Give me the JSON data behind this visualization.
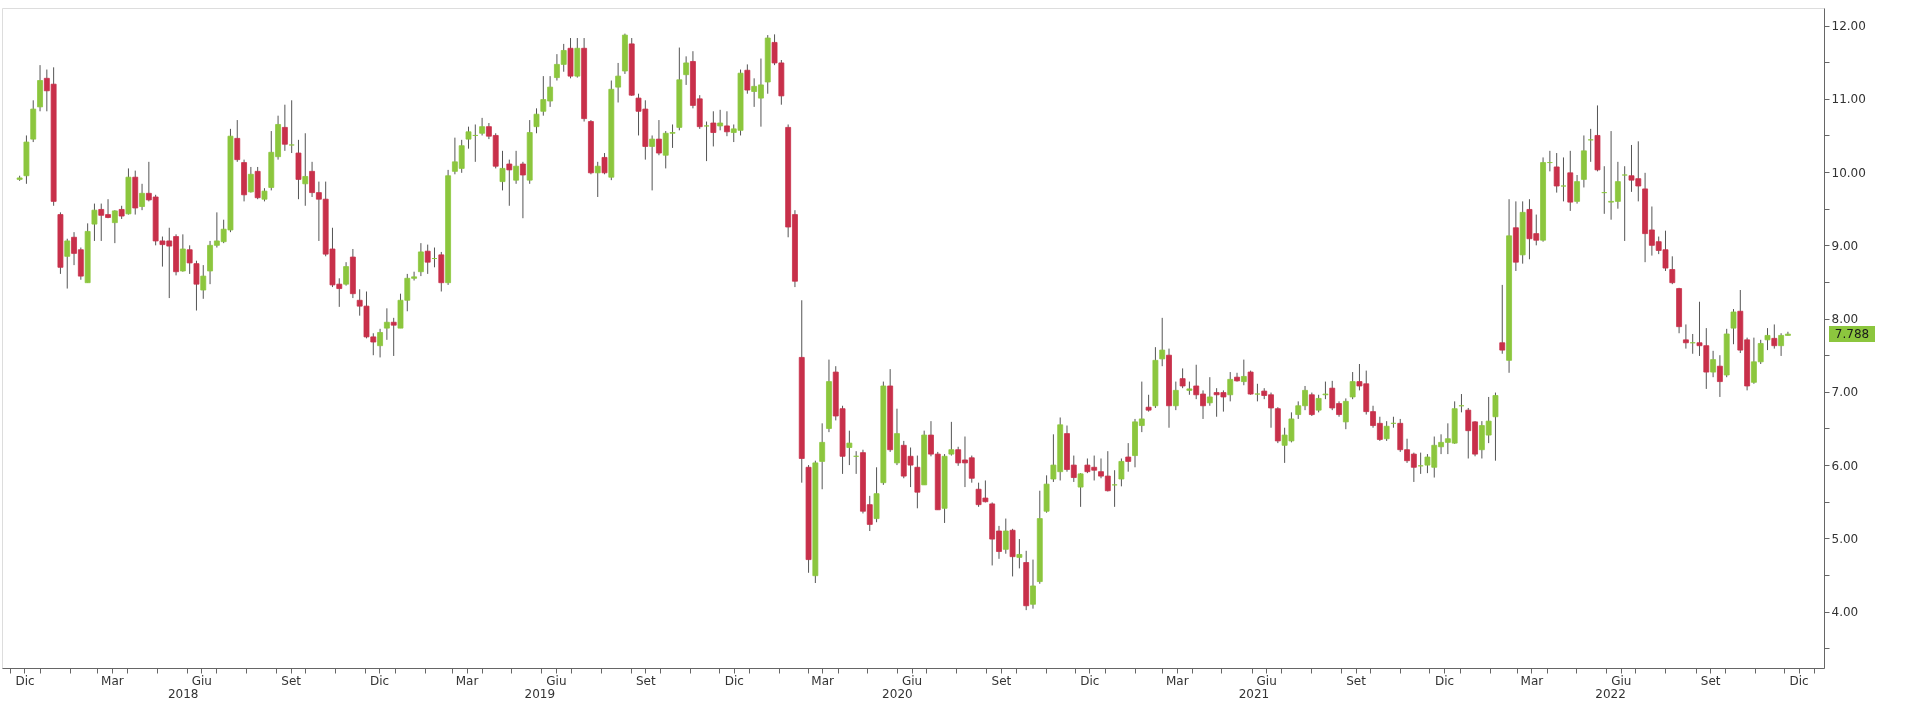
{
  "chart_data": {
    "type": "candlestick",
    "x": [
      "2017-12-11",
      "2017-12-18",
      "2017-12-25",
      "2018-01-01",
      "2018-01-08",
      "2018-01-15",
      "2018-01-22",
      "2018-01-29",
      "2018-02-05",
      "2018-02-12",
      "2018-02-19",
      "2018-02-26",
      "2018-03-05",
      "2018-03-12",
      "2018-03-19",
      "2018-03-26",
      "2018-04-02",
      "2018-04-09",
      "2018-04-16",
      "2018-04-23",
      "2018-04-30",
      "2018-05-07",
      "2018-05-14",
      "2018-05-21",
      "2018-05-28",
      "2018-06-04",
      "2018-06-11",
      "2018-06-18",
      "2018-06-25",
      "2018-07-02",
      "2018-07-09",
      "2018-07-16",
      "2018-07-23",
      "2018-07-30",
      "2018-08-06",
      "2018-08-13",
      "2018-08-20",
      "2018-08-27",
      "2018-09-03",
      "2018-09-10",
      "2018-09-17",
      "2018-09-24",
      "2018-10-01",
      "2018-10-08",
      "2018-10-15",
      "2018-10-22",
      "2018-10-29",
      "2018-11-05",
      "2018-11-12",
      "2018-11-19",
      "2018-11-26",
      "2018-12-03",
      "2018-12-10",
      "2018-12-17",
      "2018-12-24",
      "2018-12-31",
      "2019-01-07",
      "2019-01-14",
      "2019-01-21",
      "2019-01-28",
      "2019-02-04",
      "2019-02-11",
      "2019-02-18",
      "2019-02-25",
      "2019-03-04",
      "2019-03-11",
      "2019-03-18",
      "2019-03-25",
      "2019-04-01",
      "2019-04-08",
      "2019-04-15",
      "2019-04-22",
      "2019-04-29",
      "2019-05-06",
      "2019-05-13",
      "2019-05-20",
      "2019-05-27",
      "2019-06-03",
      "2019-06-10",
      "2019-06-17",
      "2019-06-24",
      "2019-07-01",
      "2019-07-08",
      "2019-07-15",
      "2019-07-22",
      "2019-07-29",
      "2019-08-05",
      "2019-08-12",
      "2019-08-19",
      "2019-08-26",
      "2019-09-02",
      "2019-09-09",
      "2019-09-16",
      "2019-09-23",
      "2019-09-30",
      "2019-10-07",
      "2019-10-14",
      "2019-10-21",
      "2019-10-28",
      "2019-11-04",
      "2019-11-11",
      "2019-11-18",
      "2019-11-25",
      "2019-12-02",
      "2019-12-09",
      "2019-12-16",
      "2019-12-23",
      "2019-12-30",
      "2020-01-06",
      "2020-01-13",
      "2020-01-20",
      "2020-01-27",
      "2020-02-03",
      "2020-02-10",
      "2020-02-17",
      "2020-02-24",
      "2020-03-02",
      "2020-03-09",
      "2020-03-16",
      "2020-03-23",
      "2020-03-30",
      "2020-04-06",
      "2020-04-13",
      "2020-04-20",
      "2020-04-27",
      "2020-05-04",
      "2020-05-11",
      "2020-05-18",
      "2020-05-25",
      "2020-06-01",
      "2020-06-08",
      "2020-06-15",
      "2020-06-22",
      "2020-06-29",
      "2020-07-06",
      "2020-07-13",
      "2020-07-20",
      "2020-07-27",
      "2020-08-03",
      "2020-08-10",
      "2020-08-17",
      "2020-08-24",
      "2020-08-31",
      "2020-09-07",
      "2020-09-14",
      "2020-09-21",
      "2020-09-28",
      "2020-10-05",
      "2020-10-12",
      "2020-10-19",
      "2020-10-26",
      "2020-11-02",
      "2020-11-09",
      "2020-11-16",
      "2020-11-23",
      "2020-11-30",
      "2020-12-07",
      "2020-12-14",
      "2020-12-21",
      "2020-12-28",
      "2021-01-04",
      "2021-01-11",
      "2021-01-18",
      "2021-01-25",
      "2021-02-01",
      "2021-02-08",
      "2021-02-15",
      "2021-02-22",
      "2021-03-01",
      "2021-03-08",
      "2021-03-15",
      "2021-03-22",
      "2021-03-29",
      "2021-04-05",
      "2021-04-12",
      "2021-04-19",
      "2021-04-26",
      "2021-05-03",
      "2021-05-10",
      "2021-05-17",
      "2021-05-24",
      "2021-05-31",
      "2021-06-07",
      "2021-06-14",
      "2021-06-21",
      "2021-06-28",
      "2021-07-05",
      "2021-07-12",
      "2021-07-19",
      "2021-07-26",
      "2021-08-02",
      "2021-08-09",
      "2021-08-16",
      "2021-08-23",
      "2021-08-30",
      "2021-09-06",
      "2021-09-13",
      "2021-09-20",
      "2021-09-27",
      "2021-10-04",
      "2021-10-11",
      "2021-10-18",
      "2021-10-25",
      "2021-11-01",
      "2021-11-08",
      "2021-11-15",
      "2021-11-22",
      "2021-11-29",
      "2021-12-06",
      "2021-12-13",
      "2021-12-20",
      "2021-12-27",
      "2022-01-03",
      "2022-01-10",
      "2022-01-17",
      "2022-01-24",
      "2022-01-31",
      "2022-02-07",
      "2022-02-14",
      "2022-02-21",
      "2022-02-28",
      "2022-03-07",
      "2022-03-14",
      "2022-03-21",
      "2022-03-28",
      "2022-04-04",
      "2022-04-11",
      "2022-04-18",
      "2022-04-25",
      "2022-05-02",
      "2022-05-09",
      "2022-05-16",
      "2022-05-23",
      "2022-05-30",
      "2022-06-06",
      "2022-06-13",
      "2022-06-20",
      "2022-06-27",
      "2022-07-04",
      "2022-07-11",
      "2022-07-18",
      "2022-07-25",
      "2022-08-01",
      "2022-08-08",
      "2022-08-15",
      "2022-08-22",
      "2022-08-29",
      "2022-09-05",
      "2022-09-12",
      "2022-09-19",
      "2022-09-26",
      "2022-10-03",
      "2022-10-10",
      "2022-10-17",
      "2022-10-24",
      "2022-10-31",
      "2022-11-07",
      "2022-11-14",
      "2022-11-21",
      "2022-11-28",
      "2022-12-05"
    ],
    "ohlc": [
      [
        9.9,
        9.95,
        9.88,
        9.92
      ],
      [
        9.95,
        10.5,
        9.84,
        10.41
      ],
      [
        10.45,
        10.98,
        10.41,
        10.86
      ],
      [
        10.89,
        11.46,
        10.83,
        11.25
      ],
      [
        11.28,
        11.4,
        10.83,
        11.11
      ],
      [
        11.2,
        11.43,
        9.54,
        9.6
      ],
      [
        9.42,
        9.45,
        8.61,
        8.7
      ],
      [
        8.85,
        9.09,
        8.41,
        9.06
      ],
      [
        9.11,
        9.18,
        8.73,
        8.89
      ],
      [
        8.94,
        8.97,
        8.53,
        8.58
      ],
      [
        8.49,
        9.3,
        8.49,
        9.19
      ],
      [
        9.29,
        9.57,
        9.06,
        9.48
      ],
      [
        9.49,
        9.57,
        9.06,
        9.41
      ],
      [
        9.42,
        9.63,
        9.37,
        9.38
      ],
      [
        9.31,
        9.48,
        9.03,
        9.47
      ],
      [
        9.49,
        9.54,
        9.36,
        9.4
      ],
      [
        9.43,
        10.05,
        9.42,
        9.93
      ],
      [
        9.93,
        10.02,
        9.42,
        9.51
      ],
      [
        9.53,
        9.84,
        9.48,
        9.71
      ],
      [
        9.71,
        10.14,
        9.6,
        9.62
      ],
      [
        9.66,
        9.69,
        9.0,
        9.06
      ],
      [
        9.06,
        9.12,
        8.71,
        9.01
      ],
      [
        9.06,
        9.24,
        8.28,
        8.99
      ],
      [
        9.12,
        9.15,
        8.59,
        8.64
      ],
      [
        8.65,
        9.15,
        8.64,
        8.95
      ],
      [
        8.94,
        9.0,
        8.61,
        8.76
      ],
      [
        8.75,
        8.79,
        8.11,
        8.47
      ],
      [
        8.39,
        8.73,
        8.27,
        8.58
      ],
      [
        8.65,
        9.06,
        8.47,
        9.0
      ],
      [
        9.0,
        9.45,
        8.97,
        9.06
      ],
      [
        9.05,
        9.35,
        9.03,
        9.22
      ],
      [
        9.21,
        10.59,
        9.18,
        10.49
      ],
      [
        10.46,
        10.71,
        10.14,
        10.17
      ],
      [
        10.13,
        10.17,
        9.6,
        9.69
      ],
      [
        9.73,
        10.07,
        9.72,
        9.97
      ],
      [
        10.01,
        10.07,
        9.63,
        9.65
      ],
      [
        9.63,
        9.78,
        9.6,
        9.74
      ],
      [
        9.79,
        10.56,
        9.75,
        10.27
      ],
      [
        10.21,
        10.77,
        10.17,
        10.65
      ],
      [
        10.61,
        10.92,
        10.29,
        10.38
      ],
      [
        10.37,
        10.98,
        10.26,
        10.37
      ],
      [
        10.26,
        10.44,
        9.63,
        9.9
      ],
      [
        9.84,
        10.53,
        9.54,
        9.94
      ],
      [
        10.01,
        10.14,
        9.66,
        9.72
      ],
      [
        9.72,
        9.87,
        9.06,
        9.63
      ],
      [
        9.63,
        9.87,
        8.85,
        8.88
      ],
      [
        8.95,
        9.24,
        8.43,
        8.46
      ],
      [
        8.47,
        8.55,
        8.16,
        8.41
      ],
      [
        8.47,
        8.77,
        8.45,
        8.71
      ],
      [
        8.84,
        8.95,
        8.28,
        8.34
      ],
      [
        8.25,
        8.4,
        8.04,
        8.17
      ],
      [
        8.17,
        8.37,
        7.73,
        7.75
      ],
      [
        7.75,
        7.8,
        7.5,
        7.68
      ],
      [
        7.63,
        7.86,
        7.47,
        7.81
      ],
      [
        7.87,
        8.14,
        7.71,
        7.95
      ],
      [
        7.95,
        8.01,
        7.49,
        7.91
      ],
      [
        7.87,
        8.34,
        7.87,
        8.25
      ],
      [
        8.25,
        8.61,
        8.1,
        8.55
      ],
      [
        8.55,
        8.64,
        8.52,
        8.57
      ],
      [
        8.64,
        9.03,
        8.58,
        8.91
      ],
      [
        8.92,
        9.01,
        8.61,
        8.77
      ],
      [
        8.82,
        8.97,
        8.7,
        8.82
      ],
      [
        8.87,
        8.91,
        8.37,
        8.49
      ],
      [
        8.49,
        10.03,
        8.46,
        9.95
      ],
      [
        10.01,
        10.47,
        9.97,
        10.14
      ],
      [
        10.05,
        10.44,
        9.99,
        10.36
      ],
      [
        10.45,
        10.62,
        10.32,
        10.55
      ],
      [
        10.5,
        10.65,
        10.14,
        10.5
      ],
      [
        10.53,
        10.74,
        10.5,
        10.62
      ],
      [
        10.62,
        10.67,
        10.45,
        10.49
      ],
      [
        10.5,
        10.53,
        10.05,
        10.08
      ],
      [
        9.87,
        10.29,
        9.75,
        10.05
      ],
      [
        10.11,
        10.17,
        9.54,
        10.03
      ],
      [
        9.89,
        10.29,
        9.84,
        10.08
      ],
      [
        10.11,
        10.14,
        9.37,
        9.96
      ],
      [
        9.89,
        10.71,
        9.84,
        10.54
      ],
      [
        10.62,
        10.87,
        10.53,
        10.79
      ],
      [
        10.83,
        11.31,
        10.77,
        10.99
      ],
      [
        10.97,
        11.31,
        10.89,
        11.16
      ],
      [
        11.29,
        11.61,
        11.25,
        11.47
      ],
      [
        11.47,
        11.75,
        11.37,
        11.66
      ],
      [
        11.69,
        11.83,
        11.28,
        11.31
      ],
      [
        11.31,
        11.83,
        11.29,
        11.69
      ],
      [
        11.69,
        11.83,
        10.69,
        10.73
      ],
      [
        10.69,
        10.71,
        9.97,
        9.99
      ],
      [
        9.99,
        10.14,
        9.66,
        10.08
      ],
      [
        10.2,
        10.26,
        9.97,
        9.99
      ],
      [
        9.93,
        11.25,
        9.89,
        11.13
      ],
      [
        11.16,
        11.49,
        10.95,
        11.31
      ],
      [
        11.38,
        11.89,
        11.34,
        11.87
      ],
      [
        11.75,
        11.83,
        11.04,
        11.05
      ],
      [
        11.01,
        11.07,
        10.5,
        10.83
      ],
      [
        10.86,
        10.98,
        10.17,
        10.35
      ],
      [
        10.35,
        10.5,
        9.75,
        10.45
      ],
      [
        10.45,
        10.71,
        10.23,
        10.26
      ],
      [
        10.23,
        10.56,
        10.05,
        10.53
      ],
      [
        10.53,
        10.65,
        10.33,
        10.54
      ],
      [
        10.61,
        11.7,
        10.57,
        11.26
      ],
      [
        11.33,
        11.58,
        11.19,
        11.49
      ],
      [
        11.51,
        11.65,
        10.87,
        10.91
      ],
      [
        11.0,
        11.05,
        10.59,
        10.62
      ],
      [
        10.63,
        10.69,
        10.15,
        10.63
      ],
      [
        10.67,
        10.83,
        10.35,
        10.54
      ],
      [
        10.63,
        10.85,
        10.57,
        10.67
      ],
      [
        10.63,
        10.83,
        10.49,
        10.55
      ],
      [
        10.54,
        10.65,
        10.41,
        10.59
      ],
      [
        10.57,
        11.4,
        10.5,
        11.35
      ],
      [
        11.39,
        11.47,
        11.07,
        11.12
      ],
      [
        11.1,
        11.28,
        10.89,
        11.17
      ],
      [
        11.01,
        11.55,
        10.62,
        11.19
      ],
      [
        11.23,
        11.87,
        11.07,
        11.83
      ],
      [
        11.77,
        11.88,
        11.46,
        11.49
      ],
      [
        11.49,
        11.53,
        10.92,
        11.04
      ],
      [
        10.61,
        10.65,
        9.11,
        9.25
      ],
      [
        9.42,
        9.48,
        8.43,
        8.51
      ],
      [
        7.47,
        8.25,
        5.76,
        6.09
      ],
      [
        5.97,
        6.0,
        4.53,
        4.71
      ],
      [
        4.49,
        6.06,
        4.39,
        6.03
      ],
      [
        6.05,
        6.57,
        5.67,
        6.31
      ],
      [
        6.5,
        7.44,
        6.45,
        7.14
      ],
      [
        7.27,
        7.35,
        6.61,
        6.67
      ],
      [
        6.77,
        6.81,
        5.88,
        6.12
      ],
      [
        6.24,
        6.47,
        6.0,
        6.3
      ],
      [
        6.12,
        6.19,
        5.88,
        6.12
      ],
      [
        6.17,
        6.21,
        5.34,
        5.37
      ],
      [
        5.46,
        5.58,
        5.1,
        5.19
      ],
      [
        5.27,
        5.97,
        5.22,
        5.61
      ],
      [
        5.76,
        7.14,
        5.73,
        7.08
      ],
      [
        7.08,
        7.31,
        6.18,
        6.21
      ],
      [
        6.03,
        6.77,
        6.0,
        6.43
      ],
      [
        6.27,
        6.33,
        5.82,
        5.85
      ],
      [
        6.12,
        6.24,
        5.7,
        6.0
      ],
      [
        5.97,
        6.13,
        5.41,
        5.63
      ],
      [
        5.73,
        6.47,
        5.73,
        6.41
      ],
      [
        6.41,
        6.6,
        6.12,
        6.15
      ],
      [
        6.15,
        6.18,
        5.39,
        5.39
      ],
      [
        5.41,
        6.15,
        5.21,
        6.12
      ],
      [
        6.15,
        6.59,
        6.13,
        6.21
      ],
      [
        6.21,
        6.25,
        5.99,
        6.03
      ],
      [
        6.07,
        6.39,
        5.7,
        6.03
      ],
      [
        6.1,
        6.13,
        5.76,
        5.82
      ],
      [
        5.67,
        5.76,
        5.43,
        5.46
      ],
      [
        5.55,
        5.79,
        5.49,
        5.5
      ],
      [
        5.47,
        5.49,
        4.63,
        4.99
      ],
      [
        5.1,
        5.17,
        4.72,
        4.82
      ],
      [
        4.85,
        5.27,
        4.79,
        5.1
      ],
      [
        5.11,
        5.13,
        4.48,
        4.75
      ],
      [
        4.74,
        4.99,
        4.59,
        4.78
      ],
      [
        4.67,
        4.83,
        4.02,
        4.08
      ],
      [
        4.1,
        4.71,
        4.04,
        4.35
      ],
      [
        4.41,
        5.65,
        4.38,
        5.27
      ],
      [
        5.37,
        5.86,
        5.35,
        5.74
      ],
      [
        5.81,
        6.42,
        5.77,
        6.0
      ],
      [
        5.91,
        6.65,
        5.79,
        6.55
      ],
      [
        6.43,
        6.54,
        5.91,
        5.94
      ],
      [
        6.0,
        6.13,
        5.77,
        5.83
      ],
      [
        5.7,
        5.89,
        5.43,
        5.88
      ],
      [
        6.0,
        6.09,
        5.89,
        5.91
      ],
      [
        5.97,
        6.13,
        5.79,
        5.93
      ],
      [
        5.91,
        6.09,
        5.82,
        5.85
      ],
      [
        5.85,
        6.19,
        5.64,
        5.65
      ],
      [
        5.73,
        5.93,
        5.43,
        5.73
      ],
      [
        5.81,
        6.09,
        5.71,
        6.05
      ],
      [
        6.11,
        6.3,
        5.91,
        6.05
      ],
      [
        6.13,
        6.63,
        5.97,
        6.59
      ],
      [
        6.54,
        7.14,
        6.45,
        6.63
      ],
      [
        6.79,
        6.96,
        6.73,
        6.75
      ],
      [
        6.81,
        7.61,
        6.78,
        7.43
      ],
      [
        7.45,
        8.01,
        7.35,
        7.57
      ],
      [
        7.5,
        7.59,
        6.51,
        6.81
      ],
      [
        6.81,
        7.14,
        6.75,
        7.02
      ],
      [
        7.18,
        7.32,
        7.05,
        7.08
      ],
      [
        7.02,
        7.14,
        6.96,
        7.04
      ],
      [
        7.08,
        7.37,
        6.9,
        6.96
      ],
      [
        6.97,
        7.02,
        6.63,
        6.81
      ],
      [
        6.85,
        7.2,
        6.81,
        6.93
      ],
      [
        6.99,
        7.05,
        6.66,
        6.96
      ],
      [
        6.99,
        7.02,
        6.73,
        6.93
      ],
      [
        6.96,
        7.27,
        6.87,
        7.17
      ],
      [
        7.2,
        7.26,
        7.14,
        7.15
      ],
      [
        7.14,
        7.44,
        7.09,
        7.21
      ],
      [
        7.27,
        7.29,
        6.96,
        6.97
      ],
      [
        6.97,
        7.11,
        6.87,
        6.97
      ],
      [
        7.01,
        7.05,
        6.9,
        6.95
      ],
      [
        6.96,
        6.99,
        6.51,
        6.78
      ],
      [
        6.77,
        6.79,
        6.3,
        6.33
      ],
      [
        6.27,
        6.51,
        6.03,
        6.41
      ],
      [
        6.33,
        6.72,
        6.31,
        6.63
      ],
      [
        6.69,
        6.87,
        6.63,
        6.81
      ],
      [
        6.81,
        7.08,
        6.75,
        7.02
      ],
      [
        6.96,
        6.99,
        6.67,
        6.69
      ],
      [
        6.75,
        6.96,
        6.72,
        6.91
      ],
      [
        6.96,
        7.14,
        6.9,
        6.97
      ],
      [
        7.05,
        7.15,
        6.75,
        6.78
      ],
      [
        6.84,
        6.87,
        6.66,
        6.69
      ],
      [
        6.59,
        6.91,
        6.49,
        6.87
      ],
      [
        6.93,
        7.27,
        6.9,
        7.14
      ],
      [
        7.14,
        7.38,
        7.02,
        7.08
      ],
      [
        7.11,
        7.29,
        6.69,
        6.73
      ],
      [
        6.73,
        6.81,
        6.51,
        6.54
      ],
      [
        6.57,
        6.66,
        6.33,
        6.35
      ],
      [
        6.36,
        6.6,
        6.33,
        6.53
      ],
      [
        6.57,
        6.66,
        6.51,
        6.57
      ],
      [
        6.57,
        6.63,
        6.18,
        6.21
      ],
      [
        6.21,
        6.36,
        6.03,
        6.06
      ],
      [
        6.15,
        6.17,
        5.77,
        5.97
      ],
      [
        5.99,
        6.17,
        5.88,
        5.99
      ],
      [
        6.0,
        6.15,
        5.89,
        6.11
      ],
      [
        5.97,
        6.39,
        5.83,
        6.27
      ],
      [
        6.25,
        6.42,
        6.15,
        6.31
      ],
      [
        6.31,
        6.57,
        6.15,
        6.36
      ],
      [
        6.3,
        6.87,
        6.29,
        6.77
      ],
      [
        6.81,
        6.97,
        6.72,
        6.81
      ],
      [
        6.75,
        6.78,
        6.09,
        6.47
      ],
      [
        6.59,
        6.6,
        6.12,
        6.15
      ],
      [
        6.21,
        6.6,
        6.09,
        6.54
      ],
      [
        6.41,
        6.93,
        6.3,
        6.6
      ],
      [
        6.66,
        6.99,
        6.06,
        6.95
      ],
      [
        7.67,
        8.46,
        7.52,
        7.57
      ],
      [
        7.43,
        9.63,
        7.26,
        9.13
      ],
      [
        9.24,
        9.6,
        8.65,
        8.77
      ],
      [
        8.87,
        9.6,
        8.75,
        9.45
      ],
      [
        9.49,
        9.63,
        8.81,
        9.09
      ],
      [
        9.16,
        9.42,
        9.0,
        9.07
      ],
      [
        9.07,
        10.2,
        9.05,
        10.13
      ],
      [
        10.13,
        10.29,
        10.01,
        10.13
      ],
      [
        10.07,
        10.26,
        9.72,
        9.81
      ],
      [
        9.81,
        10.2,
        9.6,
        9.81
      ],
      [
        9.99,
        10.29,
        9.47,
        9.59
      ],
      [
        9.6,
        9.96,
        9.57,
        9.87
      ],
      [
        9.9,
        10.5,
        9.79,
        10.29
      ],
      [
        10.44,
        10.59,
        10.14,
        10.44
      ],
      [
        10.5,
        10.91,
        10.01,
        10.03
      ],
      [
        9.72,
        10.08,
        9.43,
        9.72
      ],
      [
        9.59,
        10.56,
        9.35,
        9.6
      ],
      [
        9.6,
        10.14,
        9.5,
        9.87
      ],
      [
        9.96,
        10.08,
        9.06,
        9.96
      ],
      [
        9.95,
        10.37,
        9.73,
        9.89
      ],
      [
        9.91,
        10.42,
        9.6,
        9.81
      ],
      [
        9.77,
        9.99,
        8.77,
        9.16
      ],
      [
        9.21,
        9.53,
        8.86,
        9.0
      ],
      [
        9.05,
        9.12,
        8.88,
        8.93
      ],
      [
        8.94,
        9.2,
        8.65,
        8.69
      ],
      [
        8.67,
        8.85,
        8.47,
        8.49
      ],
      [
        8.41,
        8.42,
        7.8,
        7.89
      ],
      [
        7.71,
        7.92,
        7.59,
        7.67
      ],
      [
        7.67,
        7.79,
        7.52,
        7.67
      ],
      [
        7.67,
        8.23,
        7.49,
        7.63
      ],
      [
        7.63,
        7.87,
        7.04,
        7.27
      ],
      [
        7.27,
        7.56,
        7.2,
        7.44
      ],
      [
        7.35,
        7.5,
        6.93,
        7.14
      ],
      [
        7.23,
        7.86,
        7.2,
        7.79
      ],
      [
        7.87,
        8.13,
        7.65,
        8.09
      ],
      [
        8.1,
        8.39,
        7.53,
        7.57
      ],
      [
        7.71,
        7.74,
        7.02,
        7.08
      ],
      [
        7.13,
        7.74,
        7.11,
        7.41
      ],
      [
        7.41,
        7.71,
        7.38,
        7.66
      ],
      [
        7.71,
        7.87,
        7.57,
        7.77
      ],
      [
        7.73,
        7.92,
        7.59,
        7.63
      ],
      [
        7.63,
        7.8,
        7.49,
        7.77
      ],
      [
        7.77,
        7.82,
        7.77,
        7.788
      ]
    ],
    "colors": [
      "#8cc63e",
      "#8cc63e",
      "#8cc63e",
      "#8cc63e",
      "#c8304a",
      "#c8304a",
      "#c8304a",
      "#8cc63e",
      "#c8304a",
      "#c8304a",
      "#8cc63e",
      "#8cc63e",
      "#c8304a",
      "#c8304a",
      "#8cc63e",
      "#c8304a",
      "#8cc63e",
      "#c8304a",
      "#8cc63e",
      "#c8304a",
      "#c8304a",
      "#c8304a",
      "#c8304a",
      "#c8304a",
      "#8cc63e",
      "#c8304a",
      "#c8304a",
      "#8cc63e",
      "#8cc63e",
      "#8cc63e",
      "#8cc63e",
      "#8cc63e",
      "#c8304a",
      "#c8304a",
      "#8cc63e",
      "#c8304a",
      "#8cc63e",
      "#8cc63e",
      "#8cc63e",
      "#c8304a",
      "#8cc63e",
      "#c8304a",
      "#8cc63e",
      "#c8304a",
      "#c8304a",
      "#c8304a",
      "#c8304a",
      "#c8304a",
      "#8cc63e",
      "#c8304a",
      "#c8304a",
      "#c8304a",
      "#c8304a",
      "#8cc63e",
      "#8cc63e",
      "#c8304a",
      "#8cc63e",
      "#8cc63e",
      "#8cc63e",
      "#8cc63e",
      "#c8304a",
      "#8cc63e",
      "#c8304a",
      "#8cc63e",
      "#8cc63e",
      "#8cc63e",
      "#8cc63e",
      "#8cc63e",
      "#8cc63e",
      "#c8304a",
      "#c8304a",
      "#8cc63e",
      "#c8304a",
      "#8cc63e",
      "#c8304a",
      "#8cc63e",
      "#8cc63e",
      "#8cc63e",
      "#8cc63e",
      "#8cc63e",
      "#8cc63e",
      "#c8304a",
      "#8cc63e",
      "#c8304a",
      "#c8304a",
      "#8cc63e",
      "#c8304a",
      "#8cc63e",
      "#8cc63e",
      "#8cc63e",
      "#c8304a",
      "#c8304a",
      "#c8304a",
      "#8cc63e",
      "#c8304a",
      "#8cc63e",
      "#8cc63e",
      "#8cc63e",
      "#8cc63e",
      "#c8304a",
      "#c8304a",
      "#8cc63e",
      "#c8304a",
      "#8cc63e",
      "#c8304a",
      "#8cc63e",
      "#8cc63e",
      "#c8304a",
      "#8cc63e",
      "#8cc63e",
      "#8cc63e",
      "#c8304a",
      "#c8304a",
      "#c8304a",
      "#c8304a",
      "#c8304a",
      "#c8304a",
      "#8cc63e",
      "#8cc63e",
      "#8cc63e",
      "#c8304a",
      "#c8304a",
      "#8cc63e",
      "#8cc63e",
      "#c8304a",
      "#c8304a",
      "#8cc63e",
      "#8cc63e",
      "#c8304a",
      "#8cc63e",
      "#c8304a",
      "#c8304a",
      "#c8304a",
      "#8cc63e",
      "#c8304a",
      "#c8304a",
      "#8cc63e",
      "#8cc63e",
      "#c8304a",
      "#c8304a",
      "#c8304a",
      "#c8304a",
      "#c8304a",
      "#c8304a",
      "#c8304a",
      "#8cc63e",
      "#c8304a",
      "#8cc63e",
      "#c8304a",
      "#8cc63e",
      "#8cc63e",
      "#8cc63e",
      "#8cc63e",
      "#8cc63e",
      "#c8304a",
      "#c8304a",
      "#8cc63e",
      "#c8304a",
      "#c8304a",
      "#c8304a",
      "#c8304a",
      "#8cc63e",
      "#8cc63e",
      "#c8304a",
      "#8cc63e",
      "#8cc63e",
      "#c8304a",
      "#8cc63e",
      "#8cc63e",
      "#c8304a",
      "#8cc63e",
      "#c8304a",
      "#8cc63e",
      "#c8304a",
      "#c8304a",
      "#8cc63e",
      "#c8304a",
      "#c8304a",
      "#8cc63e",
      "#c8304a",
      "#8cc63e",
      "#c8304a",
      "#8cc63e",
      "#c8304a",
      "#c8304a",
      "#c8304a",
      "#8cc63e",
      "#8cc63e",
      "#8cc63e",
      "#8cc63e",
      "#c8304a",
      "#8cc63e",
      "#8cc63e",
      "#c8304a",
      "#c8304a",
      "#8cc63e",
      "#8cc63e",
      "#c8304a",
      "#c8304a",
      "#c8304a",
      "#c8304a",
      "#8cc63e",
      "#8cc63e",
      "#c8304a",
      "#c8304a",
      "#c8304a",
      "#8cc63e",
      "#8cc63e",
      "#8cc63e",
      "#8cc63e",
      "#8cc63e",
      "#8cc63e",
      "#8cc63e",
      "#c8304a",
      "#c8304a",
      "#8cc63e",
      "#8cc63e",
      "#8cc63e",
      "#c8304a",
      "#8cc63e",
      "#c8304a",
      "#8cc63e",
      "#c8304a",
      "#c8304a",
      "#8cc63e",
      "#8cc63e",
      "#c8304a",
      "#8cc63e",
      "#c8304a",
      "#8cc63e",
      "#8cc63e",
      "#8cc63e",
      "#c8304a",
      "#8cc63e",
      "#8cc63e",
      "#8cc63e",
      "#8cc63e",
      "#c8304a",
      "#c8304a",
      "#c8304a",
      "#c8304a",
      "#c8304a",
      "#c8304a",
      "#c8304a",
      "#c8304a",
      "#c8304a",
      "#8cc63e",
      "#c8304a",
      "#c8304a",
      "#8cc63e",
      "#c8304a",
      "#8cc63e",
      "#8cc63e",
      "#c8304a",
      "#c8304a",
      "#8cc63e",
      "#8cc63e",
      "#8cc63e",
      "#c8304a",
      "#8cc63e",
      "#8cc63e"
    ],
    "xlim": [
      "2017-11-28",
      "2023-01-06"
    ],
    "xticks": [
      {
        "value": "2017-12-16",
        "label": "Dic"
      },
      {
        "value": "2018-03-16",
        "label": "Mar"
      },
      {
        "value": "2018-06-16",
        "label": "Giu"
      },
      {
        "value": "2018-09-16",
        "label": "Set"
      },
      {
        "value": "2018-12-16",
        "label": "Dic"
      },
      {
        "value": "2019-03-16",
        "label": "Mar"
      },
      {
        "value": "2019-06-16",
        "label": "Giu"
      },
      {
        "value": "2019-09-16",
        "label": "Set"
      },
      {
        "value": "2019-12-16",
        "label": "Dic"
      },
      {
        "value": "2020-03-16",
        "label": "Mar"
      },
      {
        "value": "2020-06-16",
        "label": "Giu"
      },
      {
        "value": "2020-09-16",
        "label": "Set"
      },
      {
        "value": "2020-12-16",
        "label": "Dic"
      },
      {
        "value": "2021-03-16",
        "label": "Mar"
      },
      {
        "value": "2021-06-16",
        "label": "Giu"
      },
      {
        "value": "2021-09-16",
        "label": "Set"
      },
      {
        "value": "2021-12-16",
        "label": "Dic"
      },
      {
        "value": "2022-03-16",
        "label": "Mar"
      },
      {
        "value": "2022-06-16",
        "label": "Giu"
      },
      {
        "value": "2022-09-16",
        "label": "Set"
      },
      {
        "value": "2022-12-16",
        "label": "Dic"
      },
      {
        "value": "2017-12-01",
        "label": null
      },
      {
        "value": "2018-01-01",
        "label": null
      },
      {
        "value": "2018-02-01",
        "label": null
      },
      {
        "value": "2018-03-01",
        "label": null
      },
      {
        "value": "2018-04-01",
        "label": null
      },
      {
        "value": "2018-05-01",
        "label": null
      },
      {
        "value": "2018-06-01",
        "label": null
      },
      {
        "value": "2018-07-01",
        "label": null
      },
      {
        "value": "2018-08-01",
        "label": null
      },
      {
        "value": "2018-09-01",
        "label": null
      },
      {
        "value": "2018-10-01",
        "label": null
      },
      {
        "value": "2018-11-01",
        "label": null
      },
      {
        "value": "2018-12-01",
        "label": null
      },
      {
        "value": "2019-01-01",
        "label": null
      },
      {
        "value": "2019-02-01",
        "label": null
      },
      {
        "value": "2019-03-01",
        "label": null
      },
      {
        "value": "2019-04-01",
        "label": null
      },
      {
        "value": "2019-05-01",
        "label": null
      },
      {
        "value": "2019-06-01",
        "label": null
      },
      {
        "value": "2019-07-01",
        "label": null
      },
      {
        "value": "2019-08-01",
        "label": null
      },
      {
        "value": "2019-09-01",
        "label": null
      },
      {
        "value": "2019-10-01",
        "label": null
      },
      {
        "value": "2019-11-01",
        "label": null
      },
      {
        "value": "2019-12-01",
        "label": null
      },
      {
        "value": "2020-01-01",
        "label": null
      },
      {
        "value": "2020-02-01",
        "label": null
      },
      {
        "value": "2020-03-01",
        "label": null
      },
      {
        "value": "2020-04-01",
        "label": null
      },
      {
        "value": "2020-05-01",
        "label": null
      },
      {
        "value": "2020-06-01",
        "label": null
      },
      {
        "value": "2020-07-01",
        "label": null
      },
      {
        "value": "2020-08-01",
        "label": null
      },
      {
        "value": "2020-09-01",
        "label": null
      },
      {
        "value": "2020-10-01",
        "label": null
      },
      {
        "value": "2020-11-01",
        "label": null
      },
      {
        "value": "2020-12-01",
        "label": null
      },
      {
        "value": "2021-01-01",
        "label": null
      },
      {
        "value": "2021-02-01",
        "label": null
      },
      {
        "value": "2021-03-01",
        "label": null
      },
      {
        "value": "2021-04-01",
        "label": null
      },
      {
        "value": "2021-05-01",
        "label": null
      },
      {
        "value": "2021-06-01",
        "label": null
      },
      {
        "value": "2021-07-01",
        "label": null
      },
      {
        "value": "2021-08-01",
        "label": null
      },
      {
        "value": "2021-09-01",
        "label": null
      },
      {
        "value": "2021-10-01",
        "label": null
      },
      {
        "value": "2021-11-01",
        "label": null
      },
      {
        "value": "2021-12-01",
        "label": null
      },
      {
        "value": "2022-01-01",
        "label": null
      },
      {
        "value": "2022-02-01",
        "label": null
      },
      {
        "value": "2022-03-01",
        "label": null
      },
      {
        "value": "2022-04-01",
        "label": null
      },
      {
        "value": "2022-05-01",
        "label": null
      },
      {
        "value": "2022-06-01",
        "label": null
      },
      {
        "value": "2022-07-01",
        "label": null
      },
      {
        "value": "2022-08-01",
        "label": null
      },
      {
        "value": "2022-09-01",
        "label": null
      },
      {
        "value": "2022-10-01",
        "label": null
      },
      {
        "value": "2022-11-01",
        "label": null
      },
      {
        "value": "2022-12-01",
        "label": null
      },
      {
        "value": "2023-01-01",
        "label": null
      }
    ],
    "x2lim": [
      "2017-11-28",
      "2023-01-06"
    ],
    "x2ticks": [
      {
        "value": "2018-06-01",
        "label": "2018"
      },
      {
        "value": "2019-06-01",
        "label": "2019"
      },
      {
        "value": "2020-06-01",
        "label": "2020"
      },
      {
        "value": "2021-06-01",
        "label": "2021"
      },
      {
        "value": "2022-06-01",
        "label": "2022"
      }
    ],
    "ylim": [
      3.23,
      12.24
    ],
    "yticks": [
      {
        "value": 3.5,
        "label": null
      },
      {
        "value": 4,
        "label": "4.00"
      },
      {
        "value": 4.5,
        "label": null
      },
      {
        "value": 5,
        "label": "5.00"
      },
      {
        "value": 5.5,
        "label": null
      },
      {
        "value": 6,
        "label": "6.00"
      },
      {
        "value": 6.5,
        "label": null
      },
      {
        "value": 7,
        "label": "7.00"
      },
      {
        "value": 7.5,
        "label": null
      },
      {
        "value": 8,
        "label": "8.00"
      },
      {
        "value": 8.5,
        "label": null
      },
      {
        "value": 9,
        "label": "9.00"
      },
      {
        "value": 9.5,
        "label": null
      },
      {
        "value": 10,
        "label": "10.00"
      },
      {
        "value": 10.5,
        "label": null
      },
      {
        "value": 11,
        "label": "11.00"
      },
      {
        "value": 11.5,
        "label": null
      },
      {
        "value": 12,
        "label": "12.00"
      }
    ],
    "annotations": [
      "7.788"
    ]
  }
}
